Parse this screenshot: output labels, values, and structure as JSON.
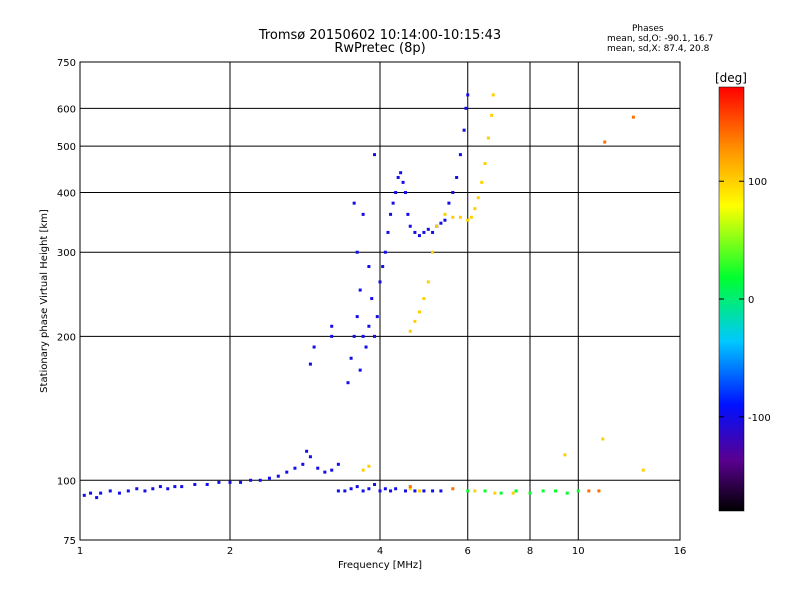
{
  "header": {
    "title": "Tromsø 20150602 10:14:00-10:15:43",
    "subtitle": "RwPretec (8p)"
  },
  "stats": {
    "heading": "Phases",
    "line_o": "mean, sd,O: -90.1, 16.7",
    "line_x": "mean, sd,X: 87.4, 20.8"
  },
  "colorbar": {
    "label": "[deg]",
    "ticks": [
      "100",
      "0",
      "-100"
    ],
    "tick_values": [
      100,
      0,
      -100
    ],
    "range": [
      -180,
      180
    ]
  },
  "chart_data": {
    "type": "scatter",
    "xlabel": "Frequency [MHz]",
    "ylabel": "Stationary phase Virtual Height [km]",
    "xscale": "log",
    "yscale": "log",
    "xlim": [
      1,
      16
    ],
    "ylim": [
      75,
      750
    ],
    "xticks": [
      1,
      2,
      4,
      6,
      8,
      10,
      16
    ],
    "xtick_labels": [
      "1",
      "2",
      "4",
      "6",
      "8",
      "10",
      "16"
    ],
    "yticks": [
      75,
      100,
      200,
      300,
      400,
      500,
      600,
      750
    ],
    "ytick_labels": [
      "75",
      "100",
      "200",
      "300",
      "400",
      "500",
      "600",
      "750"
    ],
    "grid": true,
    "series": [
      {
        "phase": -100,
        "points": [
          [
            1.02,
            93
          ],
          [
            1.05,
            94
          ],
          [
            1.08,
            92
          ],
          [
            1.1,
            94
          ],
          [
            1.15,
            95
          ],
          [
            1.2,
            94
          ],
          [
            1.25,
            95
          ],
          [
            1.3,
            96
          ],
          [
            1.35,
            95
          ],
          [
            1.4,
            96
          ],
          [
            1.45,
            97
          ],
          [
            1.5,
            96
          ],
          [
            1.55,
            97
          ],
          [
            1.6,
            97
          ],
          [
            1.7,
            98
          ],
          [
            1.8,
            98
          ],
          [
            1.9,
            99
          ],
          [
            2.0,
            99
          ],
          [
            2.1,
            99
          ],
          [
            2.2,
            100
          ],
          [
            2.3,
            100
          ],
          [
            2.4,
            101
          ],
          [
            2.5,
            102
          ],
          [
            2.6,
            104
          ],
          [
            2.7,
            106
          ],
          [
            2.8,
            108
          ],
          [
            2.85,
            115
          ],
          [
            2.9,
            112
          ],
          [
            3.0,
            106
          ],
          [
            3.1,
            104
          ],
          [
            3.2,
            105
          ],
          [
            3.3,
            108
          ],
          [
            3.3,
            95
          ],
          [
            3.4,
            95
          ],
          [
            3.5,
            96
          ],
          [
            3.6,
            97
          ],
          [
            3.7,
            95
          ],
          [
            3.8,
            96
          ],
          [
            3.9,
            98
          ],
          [
            4.0,
            95
          ],
          [
            4.1,
            96
          ],
          [
            4.2,
            95
          ],
          [
            4.3,
            96
          ],
          [
            4.5,
            95
          ],
          [
            4.7,
            95
          ],
          [
            4.9,
            95
          ],
          [
            5.1,
            95
          ],
          [
            5.3,
            95
          ],
          [
            3.45,
            160
          ],
          [
            3.5,
            180
          ],
          [
            3.55,
            200
          ],
          [
            3.6,
            220
          ],
          [
            3.65,
            250
          ],
          [
            3.7,
            200
          ],
          [
            3.75,
            190
          ],
          [
            3.8,
            210
          ],
          [
            3.85,
            240
          ],
          [
            3.9,
            200
          ],
          [
            3.95,
            220
          ],
          [
            4.0,
            260
          ],
          [
            4.05,
            280
          ],
          [
            4.1,
            300
          ],
          [
            4.15,
            330
          ],
          [
            4.2,
            360
          ],
          [
            4.25,
            380
          ],
          [
            4.3,
            400
          ],
          [
            4.35,
            430
          ],
          [
            4.4,
            440
          ],
          [
            4.45,
            420
          ],
          [
            4.5,
            400
          ],
          [
            4.55,
            360
          ],
          [
            4.6,
            340
          ],
          [
            4.7,
            330
          ],
          [
            4.8,
            325
          ],
          [
            4.9,
            330
          ],
          [
            5.0,
            335
          ],
          [
            5.1,
            330
          ],
          [
            5.2,
            340
          ],
          [
            5.3,
            345
          ],
          [
            5.4,
            350
          ],
          [
            5.5,
            380
          ],
          [
            5.6,
            400
          ],
          [
            5.7,
            430
          ],
          [
            5.8,
            480
          ],
          [
            5.9,
            540
          ],
          [
            5.95,
            600
          ],
          [
            6.0,
            640
          ],
          [
            3.55,
            380
          ],
          [
            3.7,
            360
          ],
          [
            3.9,
            480
          ],
          [
            3.2,
            210
          ],
          [
            3.2,
            200
          ],
          [
            2.95,
            190
          ],
          [
            2.9,
            175
          ],
          [
            3.6,
            300
          ],
          [
            3.8,
            280
          ],
          [
            3.65,
            170
          ]
        ]
      },
      {
        "phase": 100,
        "points": [
          [
            4.6,
            205
          ],
          [
            4.7,
            215
          ],
          [
            4.8,
            225
          ],
          [
            4.9,
            240
          ],
          [
            5.0,
            260
          ],
          [
            5.1,
            300
          ],
          [
            5.2,
            340
          ],
          [
            5.4,
            360
          ],
          [
            5.6,
            355
          ],
          [
            5.8,
            355
          ],
          [
            6.0,
            350
          ],
          [
            6.1,
            355
          ],
          [
            6.2,
            370
          ],
          [
            6.3,
            390
          ],
          [
            6.4,
            420
          ],
          [
            6.5,
            460
          ],
          [
            6.6,
            520
          ],
          [
            6.7,
            580
          ],
          [
            6.75,
            640
          ],
          [
            3.7,
            105
          ],
          [
            3.8,
            107
          ],
          [
            4.6,
            96
          ],
          [
            4.8,
            95
          ],
          [
            6.2,
            95
          ],
          [
            6.8,
            94
          ],
          [
            7.4,
            94
          ],
          [
            9.4,
            113
          ],
          [
            11.2,
            122
          ],
          [
            13.5,
            105
          ]
        ]
      },
      {
        "phase": 20,
        "points": [
          [
            6.0,
            95
          ],
          [
            6.5,
            95
          ],
          [
            7.0,
            94
          ],
          [
            7.5,
            95
          ],
          [
            8.0,
            94
          ],
          [
            8.5,
            95
          ],
          [
            9.0,
            95
          ],
          [
            9.5,
            94
          ],
          [
            10.0,
            95
          ]
        ]
      },
      {
        "phase": 140,
        "points": [
          [
            4.6,
            97
          ],
          [
            5.6,
            96
          ],
          [
            10.5,
            95
          ],
          [
            11.0,
            95
          ],
          [
            11.3,
            510
          ],
          [
            12.9,
            575
          ]
        ]
      }
    ]
  }
}
